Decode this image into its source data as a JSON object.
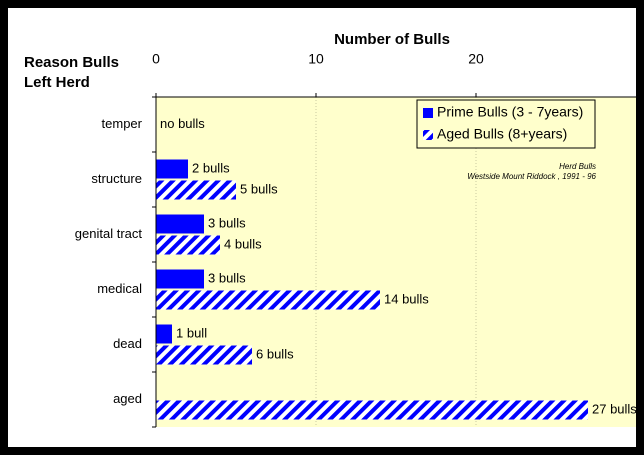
{
  "chart_data": {
    "type": "hbar",
    "x_label": "Number of Bulls",
    "y_label": [
      "Reason Bulls",
      "Left Herd"
    ],
    "annotation": [
      "Herd Bulls",
      "Westside Mount  Riddock , 1991 - 96"
    ],
    "categories": [
      "temper",
      "structure",
      "genital tract",
      "medical",
      "dead",
      "aged"
    ],
    "series": [
      {
        "name": "Prime Bulls (3 - 7years)",
        "color": "#0000ff",
        "pattern": "solid",
        "values": [
          0,
          2,
          3,
          3,
          1,
          0
        ],
        "value_labels": [
          "no bulls",
          "2 bulls",
          "3 bulls",
          "3 bulls",
          "1 bull",
          null
        ]
      },
      {
        "name": "Aged Bulls (8+years)",
        "color": "#0000ff",
        "pattern": "diagonal",
        "values": [
          0,
          5,
          4,
          14,
          6,
          27
        ],
        "value_labels": [
          null,
          "5 bulls",
          "4 bulls",
          "14 bulls",
          "6 bulls",
          "27 bulls"
        ]
      }
    ],
    "xlim": [
      0,
      30
    ],
    "xticks": [
      0,
      10,
      20
    ],
    "grid": true,
    "legend": "top-right"
  }
}
